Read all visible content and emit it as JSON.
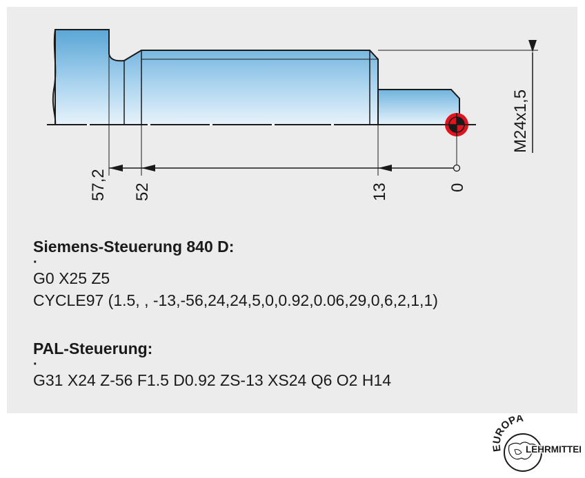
{
  "drawing": {
    "dimensions": {
      "z_57_2": "57,2",
      "z_52": "52",
      "z_13": "13",
      "z_0": "0",
      "thread": "M24x1,5"
    },
    "colors": {
      "part_fill_light": "#e2f1fb",
      "part_fill_dark": "#5aa6d6",
      "outline": "#1a1a1a",
      "datum_marker": "#e0141e"
    }
  },
  "siemens": {
    "heading": "Siemens-Steuerung 840 D:",
    "dot": "·",
    "lines": [
      "G0 X25 Z5",
      "CYCLE97 (1.5, , -13,-56,24,24,5,0,0.92,0.06,29,0,6,2,1,1)"
    ]
  },
  "pal": {
    "heading": "PAL-Steuerung:",
    "dot": "·",
    "lines": [
      "G31 X24 Z-56 F1.5 D0.92 ZS-13 XS24 Q6 O2 H14"
    ]
  },
  "logo": {
    "top_text": "EUROPA",
    "bottom_text": "LEHRMITTEL",
    "icon": "globe-icon"
  }
}
